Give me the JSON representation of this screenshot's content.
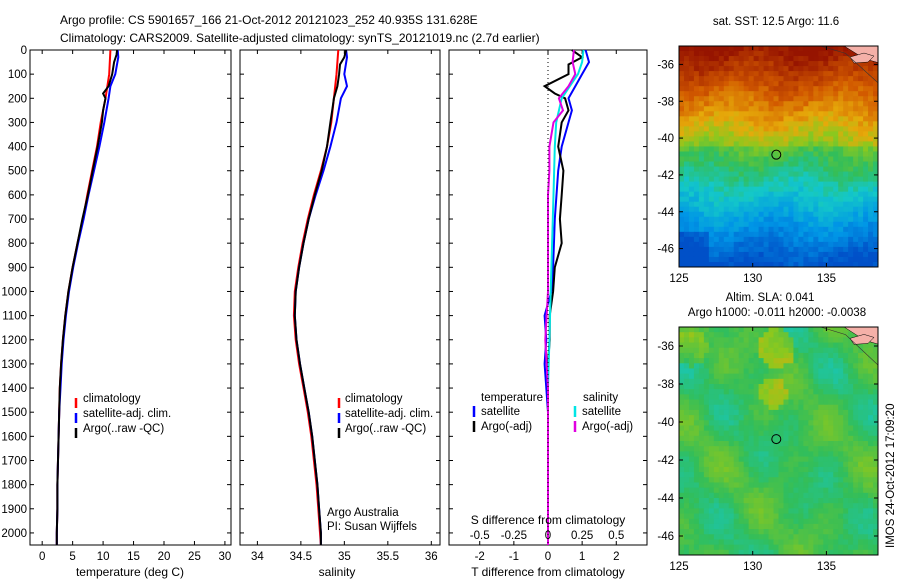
{
  "header": {
    "title_line1": "Argo profile: CS 5901657_166 21-Oct-2012 20121023_252 40.935S 131.628E",
    "title_line2": "Climatology: CARS2009. Satellite-adjusted climatology: synTS_20121019.nc (2.7d earlier)"
  },
  "side_label": "IMOS 24-Oct-2012 17:09:20",
  "colors": {
    "climatology": "#ff0000",
    "satellite": "#0000ff",
    "argo": "#000000",
    "salinity_sat": "#00e5e5",
    "salinity_argo": "#e000e0",
    "land": "#f4b0a8"
  },
  "chart_data": [
    {
      "type": "line",
      "xlabel": "temperature (deg C)",
      "xlim": [
        -2,
        31
      ],
      "xticks": [
        "0",
        "5",
        "10",
        "15",
        "20",
        "25",
        "30"
      ],
      "ylim": [
        2050,
        0
      ],
      "yticks": [
        "0",
        "100",
        "200",
        "300",
        "400",
        "500",
        "600",
        "700",
        "800",
        "900",
        "1000",
        "1100",
        "1200",
        "1300",
        "1400",
        "1500",
        "1600",
        "1700",
        "1800",
        "1900",
        "2000"
      ],
      "legend": [
        "climatology",
        "satellite-adj. clim.",
        "Argo(..raw -QC)"
      ],
      "series": [
        {
          "name": "climatology",
          "depth": [
            0,
            100,
            200,
            300,
            400,
            500,
            600,
            700,
            800,
            900,
            1000,
            1100,
            1200,
            1300,
            1400,
            1500,
            1600,
            1700,
            1800,
            1900,
            2000,
            2050
          ],
          "values": [
            11.2,
            11.0,
            10.4,
            9.6,
            9.0,
            8.2,
            7.4,
            6.7,
            5.8,
            5.0,
            4.3,
            3.8,
            3.4,
            3.1,
            2.9,
            2.8,
            2.7,
            2.6,
            2.5,
            2.5,
            2.4,
            2.4
          ]
        },
        {
          "name": "satellite-adj. clim.",
          "depth": [
            0,
            30,
            100,
            150,
            200,
            300,
            400,
            500,
            600,
            700,
            800,
            900,
            1000,
            1100,
            1200,
            1300,
            1400,
            1500,
            1600,
            1700,
            1800,
            1900,
            2000,
            2050
          ],
          "values": [
            12.4,
            12.5,
            12.0,
            11.2,
            10.9,
            10.2,
            9.4,
            8.5,
            7.6,
            6.8,
            5.9,
            5.1,
            4.4,
            3.9,
            3.5,
            3.2,
            3.0,
            2.8,
            2.7,
            2.6,
            2.5,
            2.5,
            2.4,
            2.4
          ]
        },
        {
          "name": "Argo(..raw -QC)",
          "depth": [
            0,
            20,
            50,
            100,
            150,
            180,
            200,
            250,
            300,
            400,
            500,
            600,
            700,
            800,
            900,
            1000,
            1100,
            1200,
            1300,
            1400,
            1500,
            1600,
            1700,
            1800,
            1900,
            2000,
            2050
          ],
          "values": [
            12.3,
            12.2,
            11.8,
            11.5,
            10.9,
            10.0,
            10.4,
            10.0,
            9.8,
            9.1,
            8.3,
            7.5,
            6.6,
            5.8,
            5.0,
            4.3,
            3.8,
            3.4,
            3.1,
            2.9,
            2.8,
            2.7,
            2.6,
            2.5,
            2.5,
            2.4,
            2.4
          ]
        }
      ]
    },
    {
      "type": "line",
      "xlabel": "salinity",
      "xlim": [
        33.8,
        36.1
      ],
      "xticks": [
        "34",
        "34.5",
        "35",
        "35.5",
        "36"
      ],
      "ylim": [
        2050,
        0
      ],
      "legend": [
        "climatology",
        "satellite-adj. clim.",
        "Argo(..raw -QC)"
      ],
      "annotation": [
        "Argo Australia",
        "PI: Susan Wijffels"
      ],
      "series": [
        {
          "name": "climatology",
          "depth": [
            0,
            100,
            200,
            300,
            400,
            500,
            600,
            700,
            800,
            900,
            1000,
            1100,
            1200,
            1300,
            1400,
            1500,
            1600,
            1700,
            1800,
            1900,
            2000,
            2050
          ],
          "values": [
            34.93,
            34.91,
            34.88,
            34.85,
            34.8,
            34.73,
            34.65,
            34.58,
            34.52,
            34.47,
            34.43,
            34.42,
            34.44,
            34.48,
            34.53,
            34.58,
            34.62,
            34.65,
            34.68,
            34.7,
            34.72,
            34.73
          ]
        },
        {
          "name": "satellite-adj. clim.",
          "depth": [
            0,
            30,
            100,
            150,
            200,
            300,
            400,
            500,
            600,
            700,
            800,
            900,
            1000,
            1100,
            1200,
            1300,
            1400,
            1500,
            1600,
            1700,
            1800,
            1900,
            2000,
            2050
          ],
          "values": [
            35.02,
            35.03,
            35.0,
            35.03,
            34.96,
            34.91,
            34.84,
            34.76,
            34.67,
            34.59,
            34.53,
            34.48,
            34.44,
            34.43,
            34.45,
            34.49,
            34.54,
            34.59,
            34.63,
            34.66,
            34.69,
            34.71,
            34.73,
            34.73
          ]
        },
        {
          "name": "Argo(..raw -QC)",
          "depth": [
            0,
            30,
            60,
            100,
            150,
            200,
            250,
            300,
            400,
            500,
            600,
            700,
            800,
            900,
            1000,
            1100,
            1200,
            1300,
            1400,
            1500,
            1600,
            1700,
            1800,
            1900,
            2000,
            2050
          ],
          "values": [
            35.02,
            35.0,
            34.95,
            34.94,
            34.92,
            34.88,
            34.86,
            34.84,
            34.8,
            34.74,
            34.66,
            34.59,
            34.53,
            34.48,
            34.44,
            34.43,
            34.45,
            34.49,
            34.54,
            34.59,
            34.63,
            34.66,
            34.69,
            34.71,
            34.73,
            34.73
          ]
        }
      ]
    },
    {
      "type": "line",
      "xlabel": "T difference from climatology",
      "xlabel_top": "S difference from climatology",
      "xlim": [
        -2.9,
        2.9
      ],
      "xticks": [
        "-2",
        "-1",
        "0",
        "1",
        "2"
      ],
      "xticks_s": [
        "-0.5",
        "-0.25",
        "0",
        "0.25",
        "0.5"
      ],
      "ylim": [
        2050,
        0
      ],
      "legend_groups": [
        "temperature",
        "salinity"
      ],
      "legend": [
        "satellite",
        "Argo(-adj)",
        "satellite",
        "Argo(-adj)"
      ],
      "series": [
        {
          "name": "temperature satellite",
          "depth": [
            0,
            50,
            100,
            150,
            200,
            250,
            300,
            400,
            500,
            700,
            900,
            1000,
            1100,
            1200,
            1300,
            1500,
            1700,
            1900,
            2050
          ],
          "values": [
            1.1,
            1.2,
            1.0,
            0.8,
            0.6,
            0.7,
            0.6,
            0.4,
            0.3,
            0.2,
            0.15,
            0.1,
            -0.1,
            -0.05,
            -0.1,
            0,
            0,
            0,
            0
          ]
        },
        {
          "name": "temperature Argo(-adj)",
          "depth": [
            0,
            30,
            60,
            100,
            150,
            180,
            200,
            250,
            300,
            400,
            500,
            600,
            700,
            800,
            900,
            1000,
            1100,
            1200,
            1300,
            1500,
            1700,
            1900,
            2050
          ],
          "values": [
            0.7,
            1.0,
            0.6,
            0.6,
            -0.1,
            0.2,
            0.5,
            0.6,
            0.4,
            0.3,
            0.45,
            0.4,
            0.35,
            0.4,
            0.2,
            0.15,
            0.05,
            0.05,
            0,
            0,
            0,
            0,
            0
          ]
        },
        {
          "name": "salinity satellite",
          "depth": [
            0,
            50,
            100,
            200,
            300,
            400,
            600,
            800,
            1000,
            1200,
            1400,
            1600,
            1800,
            2050
          ],
          "values": [
            0.26,
            0.25,
            0.22,
            0.1,
            0.06,
            0.05,
            0.04,
            0.03,
            0.02,
            0.01,
            0.0,
            0.0,
            0.0,
            0.0
          ]
        },
        {
          "name": "salinity Argo(-adj)",
          "depth": [
            0,
            50,
            100,
            150,
            200,
            250,
            300,
            400,
            500,
            600,
            800,
            1000,
            1200,
            1400,
            1600,
            1800,
            2050
          ],
          "values": [
            0.19,
            0.18,
            0.2,
            0.15,
            0.08,
            0.11,
            0.04,
            0.01,
            0.01,
            0.0,
            0.0,
            0.0,
            -0.02,
            0.0,
            0.0,
            0.0,
            0.0
          ]
        }
      ]
    },
    {
      "type": "heatmap",
      "title": "sat. SST: 12.5 Argo: 11.6",
      "xlim": [
        125,
        138.5
      ],
      "ylim": [
        -47,
        -35
      ],
      "xticks": [
        "125",
        "130",
        "135"
      ],
      "yticks": [
        "-36",
        "-38",
        "-40",
        "-42",
        "-44",
        "-46"
      ],
      "marker": {
        "lon": 131.6,
        "lat": -40.9
      }
    },
    {
      "type": "heatmap",
      "title": "Altim. SLA: 0.041",
      "subtitle": "Argo h1000: -0.011 h2000: -0.0038",
      "xlim": [
        125,
        138.5
      ],
      "ylim": [
        -47,
        -35
      ],
      "xticks": [
        "125",
        "130",
        "135"
      ],
      "yticks": [
        "-36",
        "-38",
        "-40",
        "-42",
        "-44",
        "-46"
      ],
      "marker": {
        "lon": 131.6,
        "lat": -40.9
      }
    }
  ]
}
